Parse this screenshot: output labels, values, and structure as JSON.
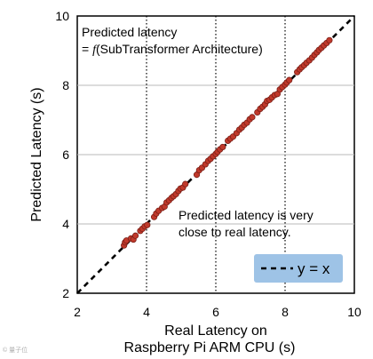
{
  "watermark": "© 量子位",
  "chart_data": {
    "type": "scatter",
    "xlim": [
      2,
      10
    ],
    "ylim": [
      2,
      10
    ],
    "x_ticks": [
      "2",
      "4",
      "6",
      "8",
      "10"
    ],
    "y_ticks": [
      "2",
      "4",
      "6",
      "8",
      "10"
    ],
    "xlabel_line1": "Real Latency on",
    "xlabel_line2": "Raspberry Pi ARM CPU (s)",
    "ylabel": "Predicted Latency (s)",
    "grid": "vertical dotted, horizontal solid",
    "annotation_top_line1": "Predicted latency",
    "annotation_top_line2_prefix": "= ",
    "annotation_top_line2_f": "f",
    "annotation_top_line2_suffix": "(SubTransformer Architecture)",
    "annotation_mid_line1": "Predicted latency is very",
    "annotation_mid_line2": "close to real latency.",
    "legend_label": "y = x",
    "reference_line": {
      "name": "y = x",
      "style": "dashed",
      "color": "#000000"
    },
    "point_color": "#c0392b",
    "point_edge_color": "#7a1f17",
    "legend_bg_color": "#9ec3e6",
    "points": [
      [
        3.35,
        3.38
      ],
      [
        3.38,
        3.47
      ],
      [
        3.42,
        3.52
      ],
      [
        3.55,
        3.58
      ],
      [
        3.62,
        3.55
      ],
      [
        3.68,
        3.66
      ],
      [
        3.82,
        3.8
      ],
      [
        3.88,
        3.86
      ],
      [
        3.95,
        3.93
      ],
      [
        4.02,
        3.97
      ],
      [
        4.22,
        4.2
      ],
      [
        4.28,
        4.3
      ],
      [
        4.35,
        4.38
      ],
      [
        4.45,
        4.46
      ],
      [
        4.52,
        4.5
      ],
      [
        4.58,
        4.62
      ],
      [
        4.65,
        4.68
      ],
      [
        4.72,
        4.75
      ],
      [
        4.78,
        4.8
      ],
      [
        4.85,
        4.86
      ],
      [
        4.92,
        4.95
      ],
      [
        4.98,
        5.02
      ],
      [
        5.05,
        5.05
      ],
      [
        5.12,
        5.15
      ],
      [
        5.45,
        5.42
      ],
      [
        5.52,
        5.55
      ],
      [
        5.6,
        5.62
      ],
      [
        5.7,
        5.72
      ],
      [
        5.78,
        5.82
      ],
      [
        5.85,
        5.88
      ],
      [
        5.92,
        5.95
      ],
      [
        6.0,
        6.02
      ],
      [
        6.05,
        6.08
      ],
      [
        6.12,
        6.15
      ],
      [
        6.2,
        6.22
      ],
      [
        6.35,
        6.4
      ],
      [
        6.42,
        6.46
      ],
      [
        6.5,
        6.52
      ],
      [
        6.6,
        6.62
      ],
      [
        6.68,
        6.72
      ],
      [
        6.75,
        6.78
      ],
      [
        6.82,
        6.86
      ],
      [
        6.9,
        6.92
      ],
      [
        6.98,
        7.02
      ],
      [
        7.05,
        7.08
      ],
      [
        7.2,
        7.22
      ],
      [
        7.28,
        7.32
      ],
      [
        7.35,
        7.38
      ],
      [
        7.42,
        7.45
      ],
      [
        7.48,
        7.55
      ],
      [
        7.55,
        7.58
      ],
      [
        7.62,
        7.65
      ],
      [
        7.7,
        7.72
      ],
      [
        7.78,
        7.75
      ],
      [
        7.85,
        7.88
      ],
      [
        7.92,
        7.95
      ],
      [
        8.0,
        8.02
      ],
      [
        8.05,
        8.08
      ],
      [
        8.12,
        8.15
      ],
      [
        8.35,
        8.38
      ],
      [
        8.42,
        8.46
      ],
      [
        8.48,
        8.52
      ],
      [
        8.55,
        8.58
      ],
      [
        8.62,
        8.65
      ],
      [
        8.7,
        8.72
      ],
      [
        8.78,
        8.8
      ],
      [
        8.85,
        8.88
      ],
      [
        8.92,
        8.95
      ],
      [
        8.98,
        9.02
      ],
      [
        9.05,
        9.08
      ],
      [
        9.12,
        9.15
      ],
      [
        9.2,
        9.22
      ],
      [
        9.28,
        9.3
      ]
    ]
  }
}
